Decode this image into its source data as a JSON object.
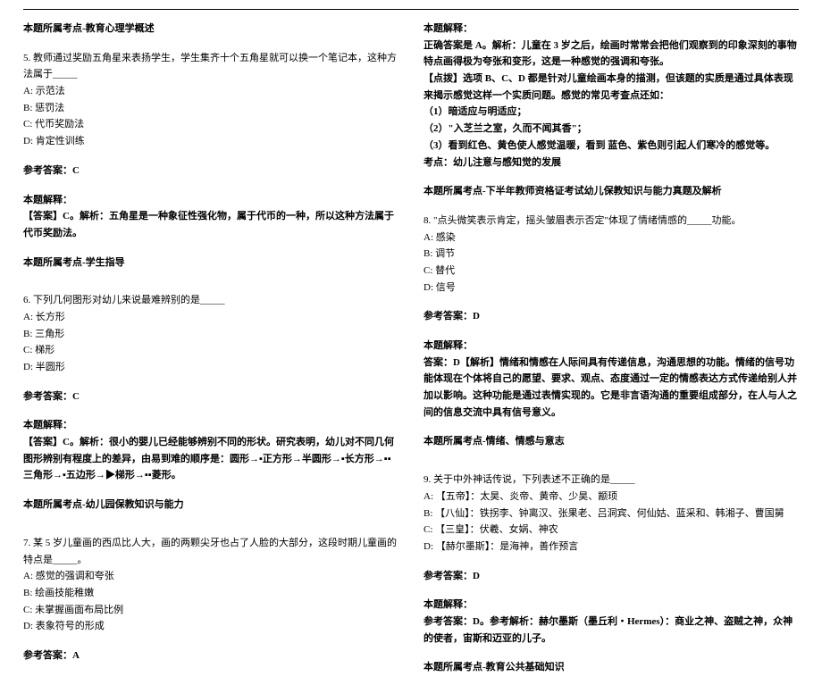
{
  "left": {
    "topic_pre": "本题所属考点-教育心理学概述",
    "q5": {
      "stem": "5. 教师通过奖励五角星来表扬学生，学生集齐十个五角星就可以换一个笔记本，这种方法属于_____",
      "opts": [
        "A: 示范法",
        "B: 惩罚法",
        "C: 代币奖励法",
        "D: 肯定性训练"
      ],
      "ans_label": "参考答案：C",
      "exp_label": "本题解释：",
      "exp": "【答案】C。解析：五角星是一种象征性强化物，属于代币的一种，所以这种方法属于代币奖励法。",
      "topic": "本题所属考点-学生指导"
    },
    "q6": {
      "stem": "6. 下列几何图形对幼儿来说最难辨别的是_____",
      "opts": [
        "A: 长方形",
        "B: 三角形",
        "C: 梯形",
        "D: 半圆形"
      ],
      "ans_label": "参考答案：C",
      "exp_label": "本题解释：",
      "exp": "【答案】C。解析：很小的婴儿已经能够辨别不同的形状。研究表明，幼儿对不同几何图形辨别有程度上的差异，由易到难的顺序是：圆形→▪正方形→半圆形→▪长方形→▪▪三角形→▪五边形→▶梯形→▪▪菱形。",
      "topic": "本题所属考点-幼儿园保教知识与能力"
    },
    "q7": {
      "stem": "7. 某 5 岁儿童画的西瓜比人大，画的两颗尖牙也占了人脸的大部分，这段时期儿童画的特点是_____。",
      "opts": [
        "A: 感觉的强调和夸张",
        "B: 绘画技能稚嫩",
        "C: 未掌握画面布局比例",
        "D: 表象符号的形成"
      ],
      "ans_label": "参考答案：A"
    }
  },
  "right": {
    "exp_label": "本题解释：",
    "q7exp": {
      "p1": "正确答案是 A。解析：儿童在 3 岁之后，绘画时常常会把他们观察到的印象深刻的事物特点画得极为夸张和变形，这是一种感觉的强调和夸张。",
      "p2": "【点拨】选项 B、C、D 都是针对儿童绘画本身的描测，但该题的实质是通过具体表现来揭示感觉这样一个实质问题。感觉的常见考查点还如：",
      "l1": "（1）暗适应与明适应；",
      "l2": "（2）\"入芝兰之室，久而不闻其香\"；",
      "l3": "（3）看到红色、黄色使人感觉温暖，看到 蓝色、紫色则引起人们寒冷的感觉等。",
      "kd": "考点：幼儿注意与感知觉的发展",
      "topic": "本题所属考点-下半年教师资格证考试幼儿保教知识与能力真题及解析"
    },
    "q8": {
      "stem": "8. \"点头微笑表示肯定，摇头皱眉表示否定\"体现了情绪情感的_____功能。",
      "opts": [
        "A: 感染",
        "B: 调节",
        "C: 替代",
        "D: 信号"
      ],
      "ans_label": "参考答案：D",
      "exp_label": "本题解释：",
      "exp": "答案：D【解析】情绪和情感在人际间具有传递信息，沟通思想的功能。情绪的信号功能体现在个体将自己的愿望、要求、观点、态度通过一定的情感表达方式传递给别人并加以影响。这种功能是通过表情实现的。它是非言语沟通的重要组成部分，在人与人之间的信息交流中具有信号意义。",
      "topic": "本题所属考点-情绪、情感与意志"
    },
    "q9": {
      "stem": "9. 关于中外神话传说，下列表述不正确的是_____",
      "opts": [
        "A: 【五帝】：太昊、炎帝、黄帝、少昊、颛顼",
        "B: 【八仙】：铁拐李、钟离汉、张果老、吕洞宾、何仙姑、蓝采和、韩湘子、曹国舅",
        "C: 【三皇】：伏羲、女娲、神农",
        "D: 【赫尔墨斯】：是海神，善作预言"
      ],
      "ans_label": "参考答案：D",
      "exp_label": "本题解释：",
      "exp": "参考答案：D。参考解析：赫尔墨斯（墨丘利・Hermes）：商业之神、盗贼之神，众神的使者，宙斯和迈亚的儿子。",
      "topic": "本题所属考点-教育公共基础知识"
    }
  }
}
